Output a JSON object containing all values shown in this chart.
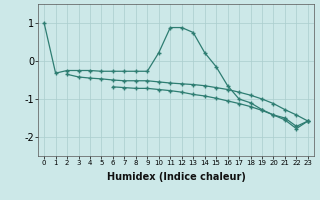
{
  "xlabel": "Humidex (Indice chaleur)",
  "background_color": "#cce8e8",
  "line_color": "#2e7d72",
  "x_values": [
    0,
    1,
    2,
    3,
    4,
    5,
    6,
    7,
    8,
    9,
    10,
    11,
    12,
    13,
    14,
    15,
    16,
    17,
    18,
    19,
    20,
    21,
    22,
    23
  ],
  "line1": [
    1.0,
    -0.32,
    -0.25,
    -0.25,
    -0.25,
    -0.27,
    -0.27,
    -0.27,
    -0.27,
    -0.27,
    0.22,
    0.88,
    0.88,
    0.75,
    0.22,
    -0.15,
    -0.65,
    -1.0,
    -1.1,
    -1.28,
    -1.42,
    -1.5,
    -1.72,
    -1.58
  ],
  "line2": [
    null,
    null,
    -0.35,
    -0.42,
    -0.45,
    -0.47,
    -0.5,
    -0.52,
    -0.52,
    -0.52,
    -0.55,
    -0.58,
    -0.6,
    -0.62,
    -0.65,
    -0.7,
    -0.75,
    -0.82,
    -0.9,
    -1.0,
    -1.12,
    -1.28,
    -1.42,
    -1.58
  ],
  "line3": [
    null,
    null,
    null,
    null,
    null,
    null,
    -0.68,
    -0.7,
    -0.72,
    -0.72,
    -0.75,
    -0.78,
    -0.82,
    -0.88,
    -0.92,
    -0.98,
    -1.05,
    -1.12,
    -1.2,
    -1.3,
    -1.42,
    -1.55,
    -1.78,
    -1.58
  ],
  "ylim": [
    -2.5,
    1.5
  ],
  "xlim": [
    -0.5,
    23.5
  ],
  "yticks": [
    -2,
    -1,
    0,
    1
  ],
  "xticks": [
    0,
    1,
    2,
    3,
    4,
    5,
    6,
    7,
    8,
    9,
    10,
    11,
    12,
    13,
    14,
    15,
    16,
    17,
    18,
    19,
    20,
    21,
    22,
    23
  ],
  "grid_color": "#aacece",
  "xlabel_fontsize": 7,
  "ytick_fontsize": 7,
  "xtick_fontsize": 5
}
